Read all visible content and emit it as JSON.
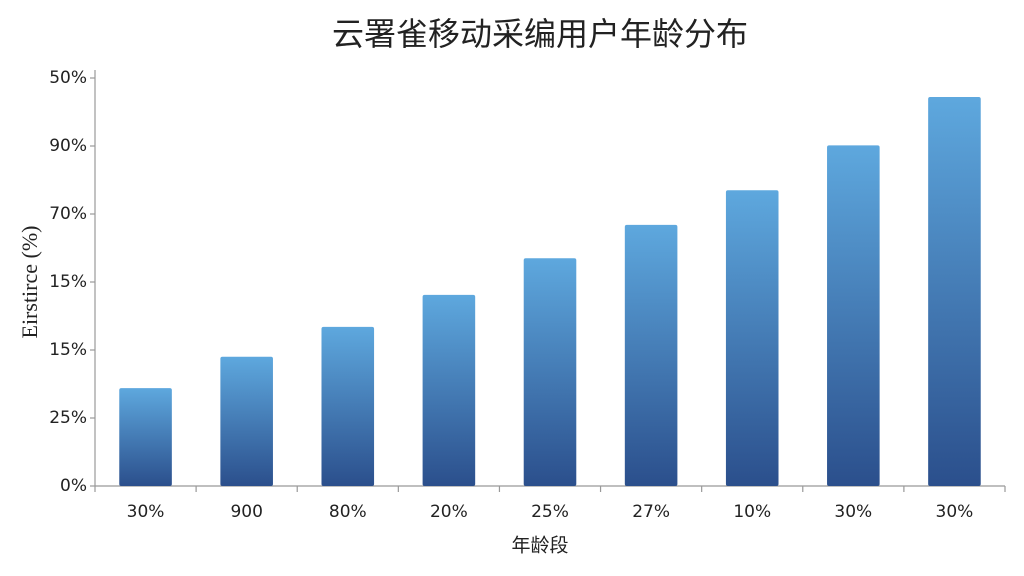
{
  "chart_data": {
    "type": "bar",
    "title": "云署雀移动采编用户年龄分布",
    "x_label": "年龄段",
    "y_label": "Eirstirce (%)",
    "categories": [
      "30%",
      "900",
      "80%",
      "20%",
      "25%",
      "27%",
      "10%",
      "30%",
      "30%"
    ],
    "values": [
      1.44,
      1.9,
      2.34,
      2.81,
      3.35,
      3.84,
      4.35,
      5.01,
      5.72
    ],
    "color": "#5ea8de",
    "ylim": [
      0,
      6
    ],
    "yticks": [
      {
        "value": 0,
        "label": "0%"
      },
      {
        "value": 1,
        "label": "25%"
      },
      {
        "value": 2,
        "label": "15%"
      },
      {
        "value": 3,
        "label": "15%"
      },
      {
        "value": 4,
        "label": "70%"
      },
      {
        "value": 5,
        "label": "90%"
      },
      {
        "value": 6,
        "label": "50%"
      }
    ]
  }
}
